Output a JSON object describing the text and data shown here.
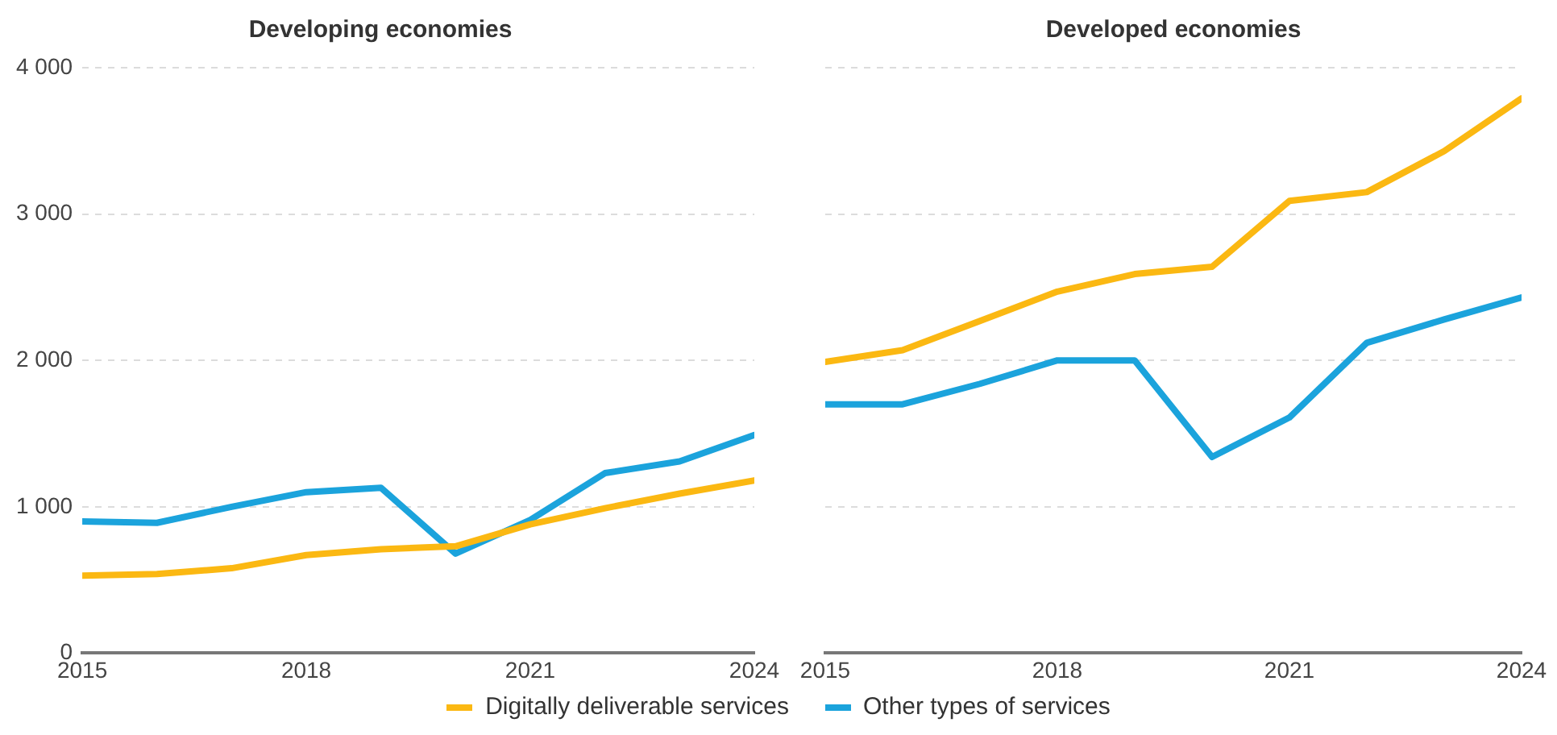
{
  "chart_data": [
    {
      "type": "line",
      "title": "Developing economies",
      "x": [
        2015,
        2016,
        2017,
        2018,
        2019,
        2020,
        2021,
        2022,
        2023,
        2024
      ],
      "xlim": [
        2015,
        2024
      ],
      "xticks": [
        2015,
        2018,
        2021,
        2024
      ],
      "ylim": [
        0,
        4000
      ],
      "yticks": [
        0,
        {
          "value": 1000,
          "label": "1 000"
        },
        {
          "value": 2000,
          "label": "2 000"
        },
        {
          "value": 3000,
          "label": "3 000"
        },
        {
          "value": 4000,
          "label": "4 000"
        }
      ],
      "grid": "y",
      "legend": "bottom",
      "marker": "none",
      "series": [
        {
          "name": "Digitally deliverable services",
          "color": "#fbb812",
          "values": [
            530,
            540,
            580,
            670,
            710,
            730,
            880,
            990,
            1090,
            1180
          ]
        },
        {
          "name": "Other types of services",
          "color": "#1ba3dc",
          "values": [
            900,
            890,
            1000,
            1100,
            1130,
            680,
            910,
            1230,
            1310,
            1490
          ]
        }
      ]
    },
    {
      "type": "line",
      "title": "Developed economies",
      "x": [
        2015,
        2016,
        2017,
        2018,
        2019,
        2020,
        2021,
        2022,
        2023,
        2024
      ],
      "xlim": [
        2015,
        2024
      ],
      "xticks": [
        2015,
        2018,
        2021,
        2024
      ],
      "ylim": [
        0,
        4000
      ],
      "yticks": [
        0,
        1000,
        2000,
        3000,
        4000
      ],
      "tick_labels": "x",
      "grid": "y",
      "legend": "bottom",
      "marker": "none",
      "series": [
        {
          "name": "Digitally deliverable services",
          "color": "#fbb812",
          "values": [
            1990,
            2070,
            2270,
            2470,
            2590,
            2640,
            3090,
            3150,
            3430,
            3790
          ]
        },
        {
          "name": "Other types of services",
          "color": "#1ba3dc",
          "values": [
            1700,
            1700,
            1840,
            2000,
            2000,
            1340,
            1610,
            2120,
            2280,
            2430
          ]
        }
      ]
    }
  ]
}
